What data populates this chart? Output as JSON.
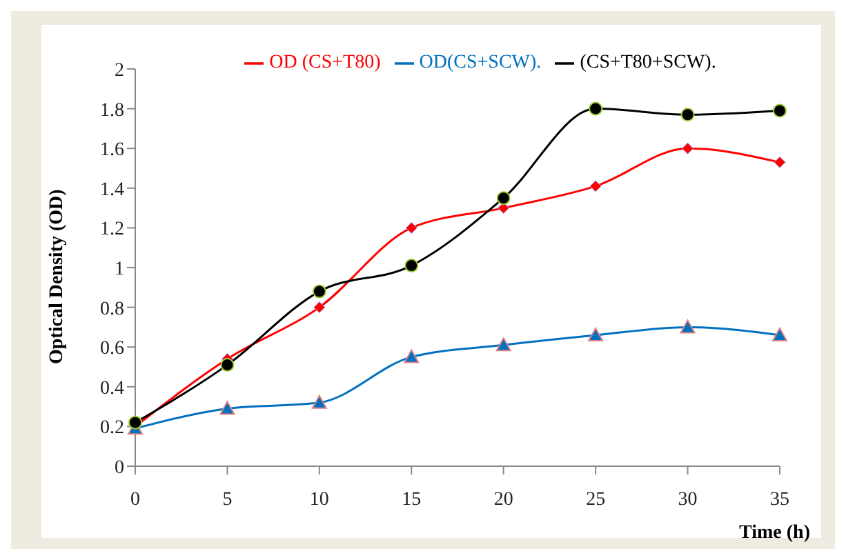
{
  "chart_data": {
    "type": "line",
    "xlabel": "Time (h)",
    "ylabel": "Optical Density (OD)",
    "categories": [
      "0",
      "5",
      "10",
      "15",
      "20",
      "25",
      "30",
      "35"
    ],
    "ylim": [
      0,
      2
    ],
    "yticks": [
      0,
      0.2,
      0.4,
      0.6,
      0.8,
      1,
      1.2,
      1.4,
      1.6,
      1.8,
      2
    ],
    "series": [
      {
        "name": "OD (CS+T80)",
        "color": "#ff0000",
        "marker": "diamond",
        "values": [
          0.2,
          0.54,
          0.8,
          1.2,
          1.3,
          1.41,
          1.6,
          1.53
        ]
      },
      {
        "name": "OD(CS+SCW).",
        "color": "#0070c0",
        "marker": "triangle",
        "values": [
          0.19,
          0.29,
          0.32,
          0.55,
          0.61,
          0.66,
          0.7,
          0.66
        ]
      },
      {
        "name": "(CS+T80+SCW).",
        "color": "#000000",
        "marker": "circle",
        "values": [
          0.22,
          0.51,
          0.88,
          1.01,
          1.35,
          1.8,
          1.77,
          1.79
        ]
      }
    ],
    "legend": "top",
    "line_style": "solid"
  }
}
